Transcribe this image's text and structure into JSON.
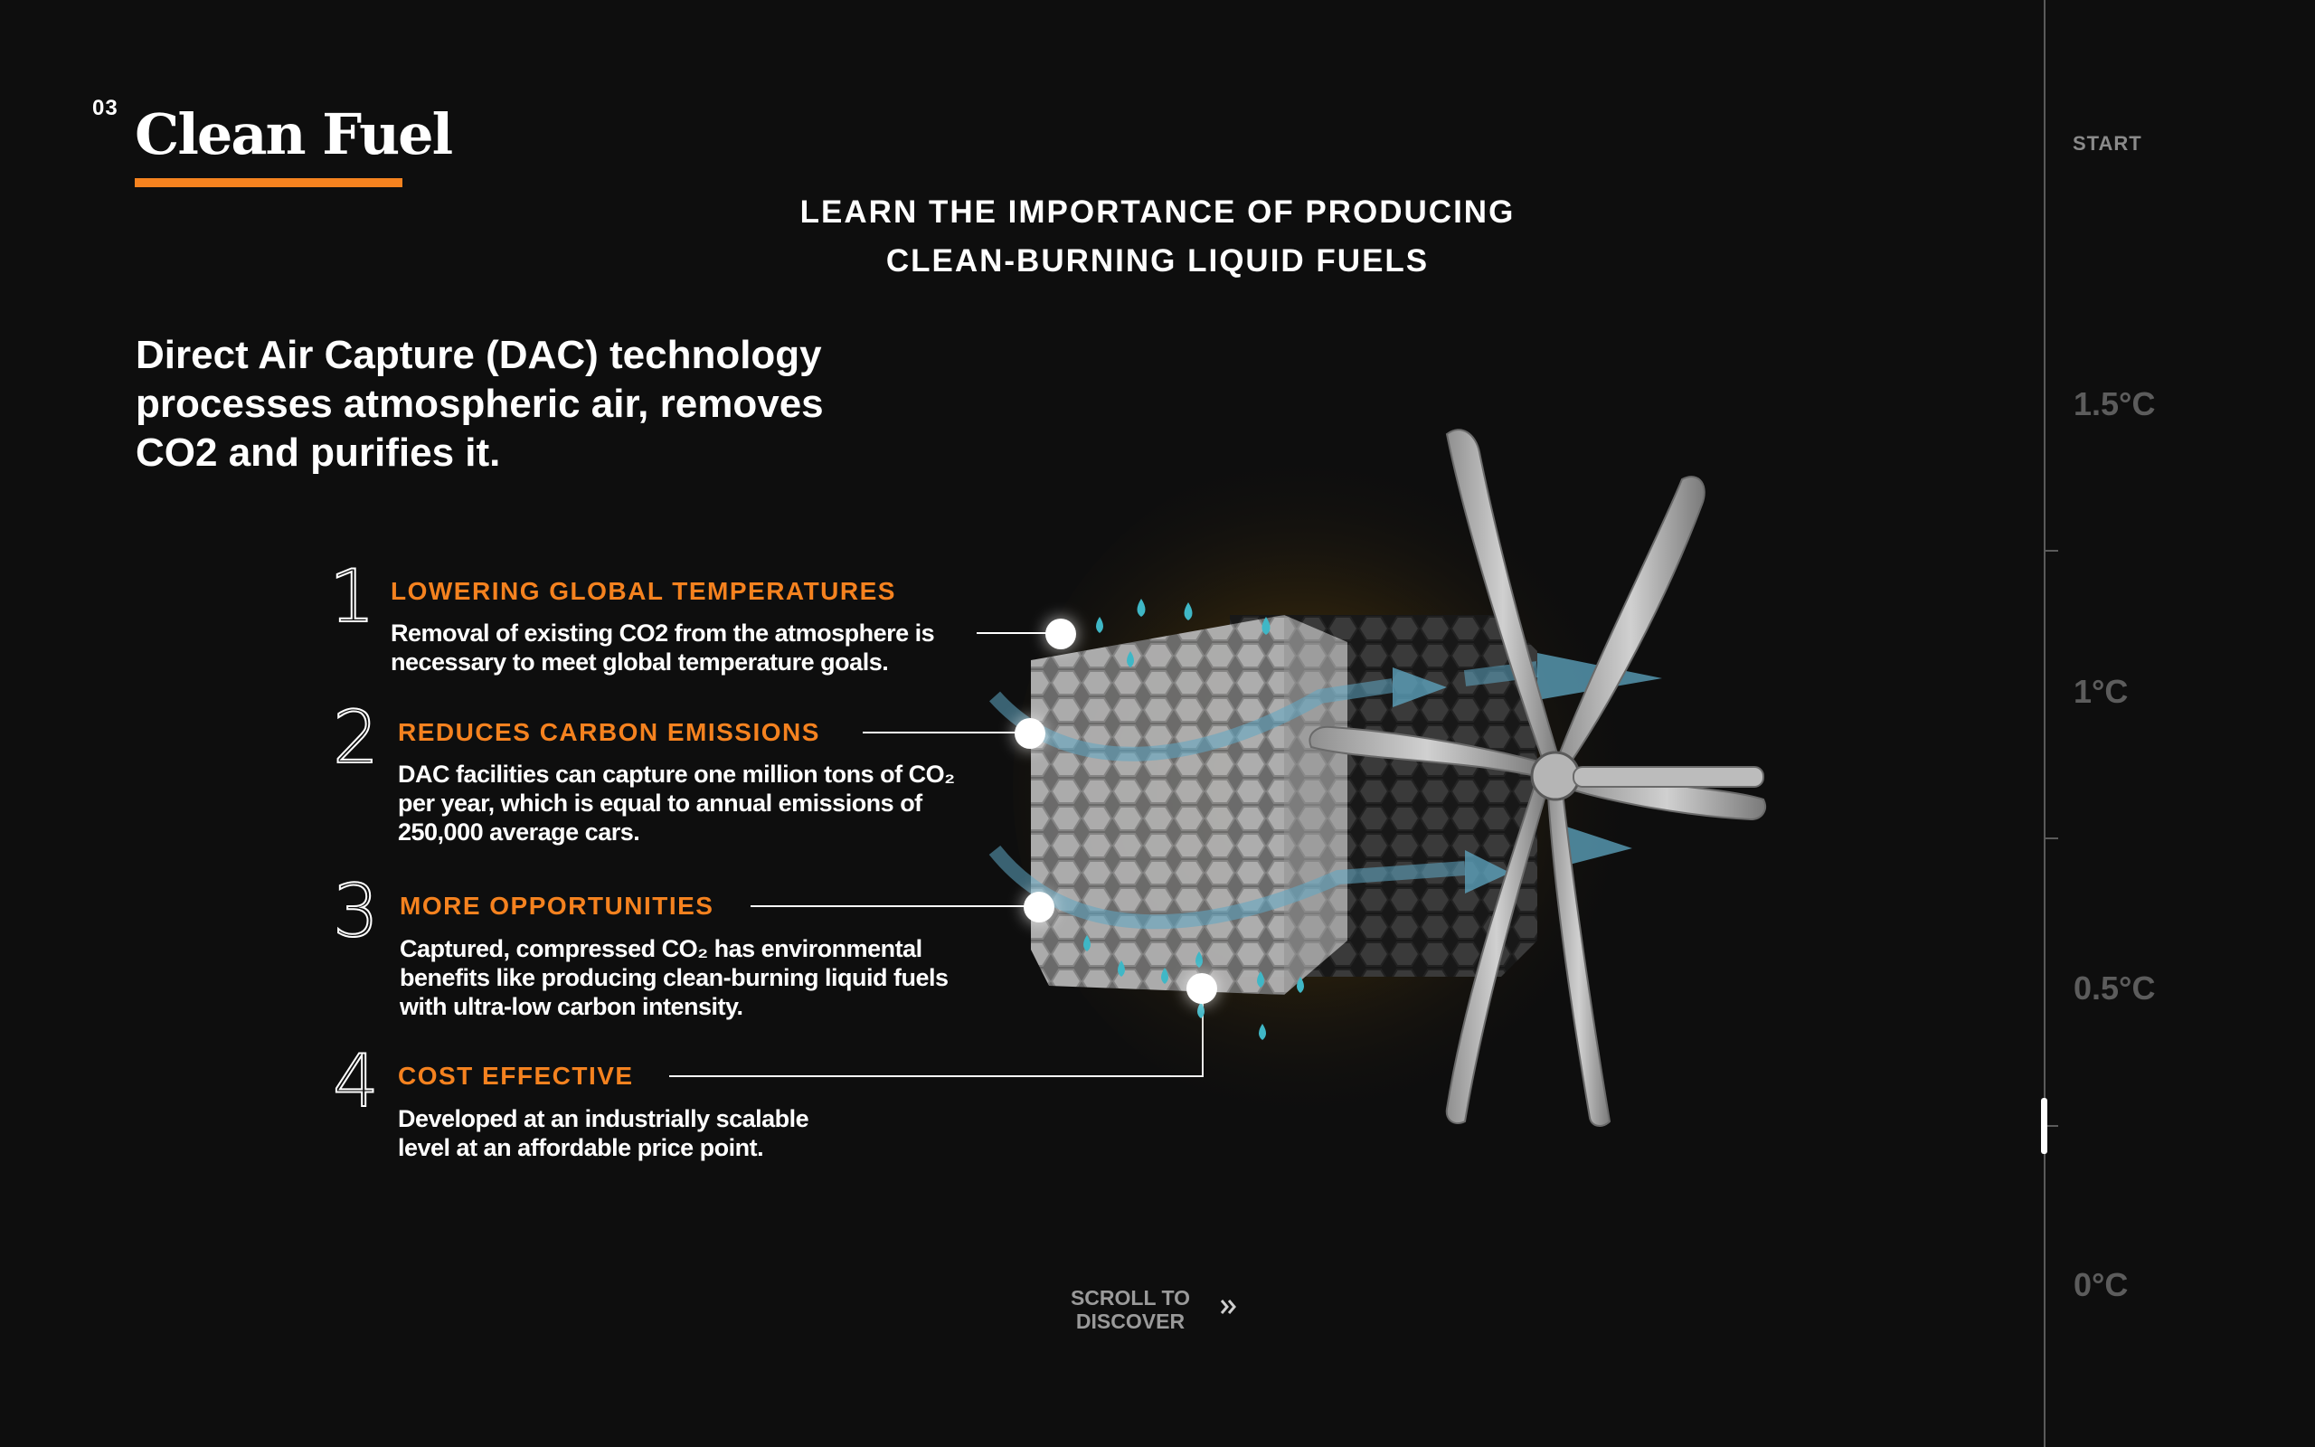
{
  "section": {
    "number": "03",
    "title": "Clean Fuel",
    "accent_color": "#f5821f"
  },
  "subtitle": {
    "line1": "LEARN THE IMPORTANCE OF PRODUCING",
    "line2": "CLEAN-BURNING LIQUID FUELS"
  },
  "intro": {
    "line1": "Direct Air Capture (DAC) technology",
    "line2": "processes atmospheric air, removes",
    "line3": "CO2 and purifies it."
  },
  "benefits": [
    {
      "number": "1",
      "title": "LOWERING GLOBAL TEMPERATURES",
      "lines": [
        "Removal of existing CO2 from the atmosphere is",
        "necessary to meet global temperature goals."
      ]
    },
    {
      "number": "2",
      "title": "REDUCES CARBON EMISSIONS",
      "lines": [
        "DAC facilities can capture one million tons of CO₂",
        "per year, which is equal to annual emissions of",
        "250,000 average cars."
      ]
    },
    {
      "number": "3",
      "title": "MORE OPPORTUNITIES",
      "lines": [
        "Captured, compressed CO₂ has environmental",
        "benefits like producing clean-burning liquid fuels",
        "with ultra-low carbon intensity."
      ]
    },
    {
      "number": "4",
      "title": "COST EFFECTIVE",
      "lines": [
        "Developed at an industrially scalable",
        "level at an affordable price point."
      ]
    }
  ],
  "scroll": {
    "line1": "SCROLL TO",
    "line2": "DISCOVER",
    "icon": "double-chevron-right-icon"
  },
  "temperature_rail": {
    "start_label": "START",
    "labels": [
      "1.5°C",
      "1°C",
      "0.5°C",
      "0°C"
    ]
  },
  "illustration": {
    "name": "dac-unit-with-fan",
    "colors": {
      "honeycomb": "#9a9a9a",
      "airflow": "#5fa8c4",
      "droplets": "#3fb7c6",
      "glow": "#b8860b"
    }
  }
}
